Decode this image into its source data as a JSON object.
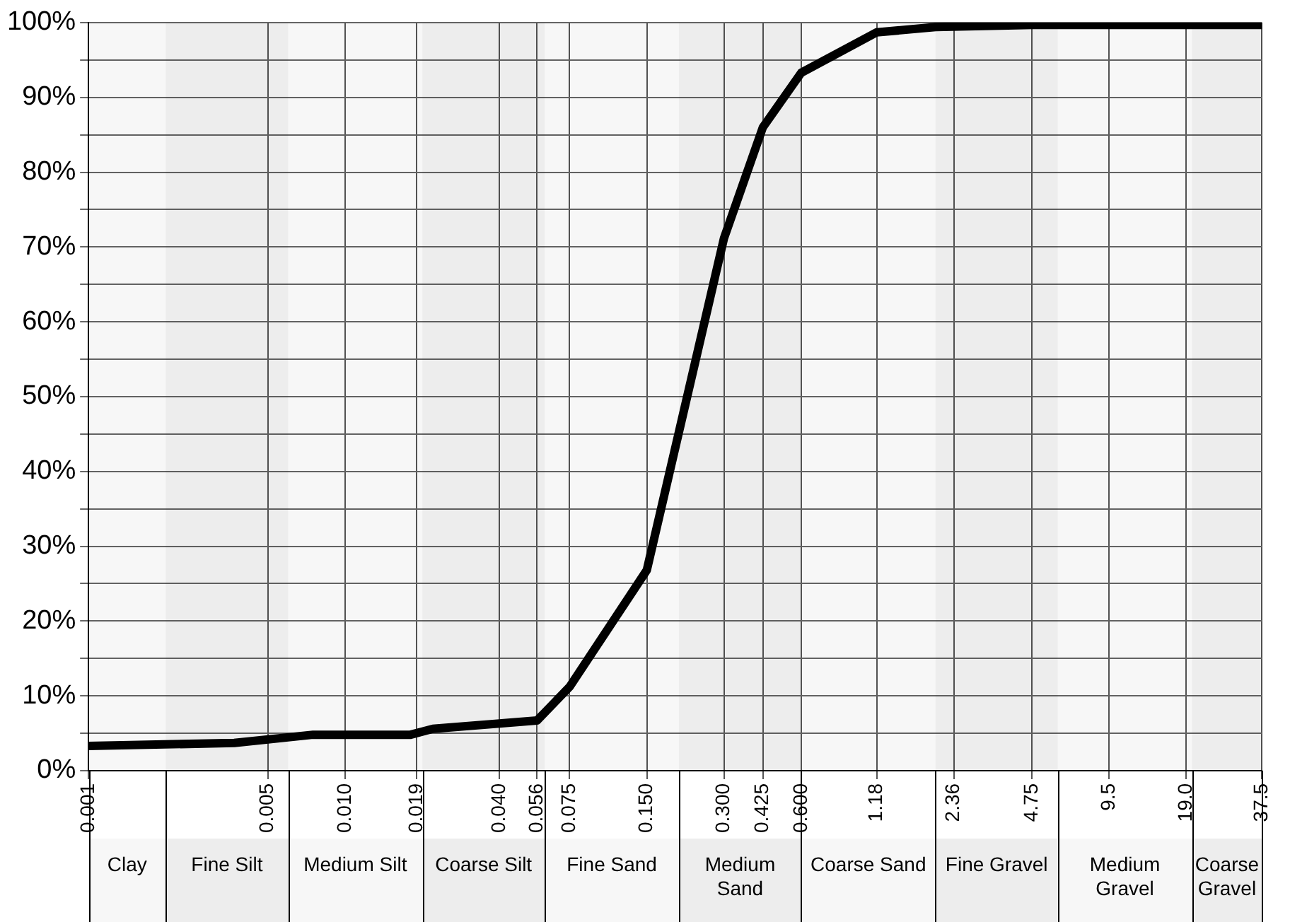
{
  "chart_data": {
    "type": "line",
    "x": [
      0.001,
      0.0037,
      0.0075,
      0.018,
      0.022,
      0.056,
      0.075,
      0.15,
      0.3,
      0.425,
      0.6,
      1.18,
      2.0,
      4.75,
      37.5
    ],
    "series": [
      {
        "color": "#000000",
        "values": [
          3.3,
          3.7,
          4.8,
          4.8,
          5.6,
          6.7,
          11.2,
          26.8,
          71.2,
          86,
          93.3,
          98.7,
          99.4,
          99.7,
          99.7
        ]
      }
    ],
    "log": "x",
    "xlim": [
      0.001,
      37.5
    ],
    "xticks": [
      {
        "value": 0.001,
        "label": "0.001"
      },
      {
        "value": 0.005,
        "label": "0.005"
      },
      {
        "value": 0.01,
        "label": "0.010"
      },
      {
        "value": 0.019,
        "label": "0.019"
      },
      {
        "value": 0.04,
        "label": "0.040"
      },
      {
        "value": 0.056,
        "label": "0.056"
      },
      {
        "value": 0.075,
        "label": "0.075"
      },
      {
        "value": 0.15,
        "label": "0.150"
      },
      {
        "value": 0.3,
        "label": "0.300"
      },
      {
        "value": 0.425,
        "label": "0.425"
      },
      {
        "value": 0.6,
        "label": "0.600"
      },
      {
        "value": 1.18,
        "label": "1.18"
      },
      {
        "value": 2.36,
        "label": "2.36"
      },
      {
        "value": 4.75,
        "label": "4.75"
      },
      {
        "value": 9.5,
        "label": "9.5"
      },
      {
        "value": 19,
        "label": "19.0"
      },
      {
        "value": 37.5,
        "label": "37.5"
      }
    ],
    "ylim": [
      0,
      100
    ],
    "yticks": [
      {
        "value": 0,
        "label": "0%"
      },
      {
        "value": 5,
        "label": null
      },
      {
        "value": 10,
        "label": "10%"
      },
      {
        "value": 15,
        "label": null
      },
      {
        "value": 20,
        "label": "20%"
      },
      {
        "value": 25,
        "label": null
      },
      {
        "value": 30,
        "label": "30%"
      },
      {
        "value": 35,
        "label": null
      },
      {
        "value": 40,
        "label": "40%"
      },
      {
        "value": 45,
        "label": null
      },
      {
        "value": 50,
        "label": "50%"
      },
      {
        "value": 55,
        "label": null
      },
      {
        "value": 60,
        "label": "60%"
      },
      {
        "value": 65,
        "label": null
      },
      {
        "value": 70,
        "label": "70%"
      },
      {
        "value": 75,
        "label": null
      },
      {
        "value": 80,
        "label": "80%"
      },
      {
        "value": 85,
        "label": null
      },
      {
        "value": 90,
        "label": "90%"
      },
      {
        "value": 95,
        "label": null
      },
      {
        "value": 100,
        "label": "100%"
      }
    ],
    "bands": [
      {
        "axis": "x",
        "from": 0.001,
        "to": 0.002
      },
      {
        "axis": "x",
        "from": 0.002,
        "to": 0.006
      },
      {
        "axis": "x",
        "from": 0.006,
        "to": 0.02
      },
      {
        "axis": "x",
        "from": 0.02,
        "to": 0.06
      },
      {
        "axis": "x",
        "from": 0.06,
        "to": 0.2
      },
      {
        "axis": "x",
        "from": 0.2,
        "to": 0.6
      },
      {
        "axis": "x",
        "from": 0.6,
        "to": 2
      },
      {
        "axis": "x",
        "from": 2,
        "to": 6
      },
      {
        "axis": "x",
        "from": 6,
        "to": 20
      },
      {
        "axis": "x",
        "from": 20,
        "to": 37.5
      }
    ],
    "annotations": [
      "Clay",
      "Fine Silt",
      "Medium Silt",
      "Coarse Silt",
      "Fine Sand",
      "Medium Sand",
      "Coarse Sand",
      "Fine Gravel",
      "Medium Gravel",
      "Coarse Gravel"
    ],
    "grid": true,
    "legend": false,
    "marker": "none",
    "line_style": "solid"
  }
}
